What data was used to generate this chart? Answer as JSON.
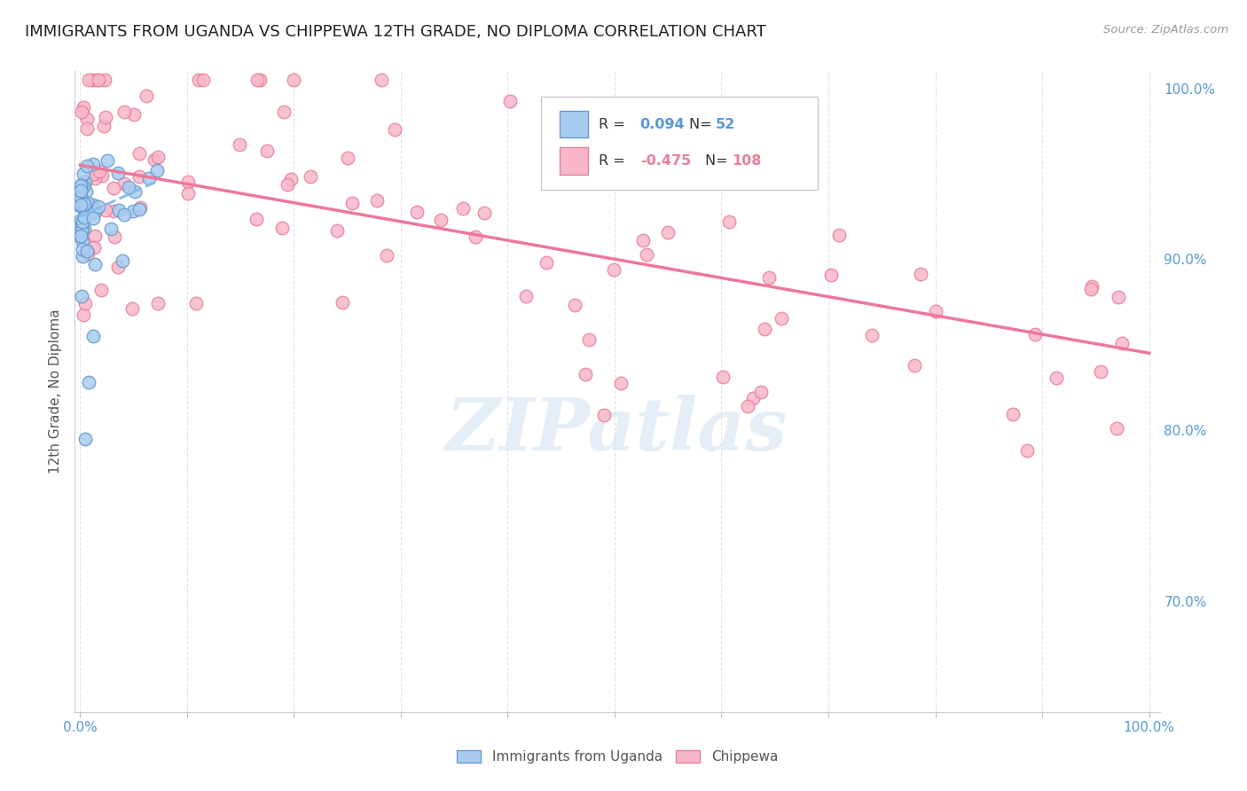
{
  "title": "IMMIGRANTS FROM UGANDA VS CHIPPEWA 12TH GRADE, NO DIPLOMA CORRELATION CHART",
  "source": "Source: ZipAtlas.com",
  "ylabel": "12th Grade, No Diploma",
  "legend_label1": "Immigrants from Uganda",
  "legend_label2": "Chippewa",
  "r1": "0.094",
  "n1": "52",
  "r2": "-0.475",
  "n2": "108",
  "watermark": "ZIPatlas",
  "blue_color": "#A8CCF0",
  "blue_edge_color": "#6699CC",
  "pink_color": "#F8B8C8",
  "pink_edge_color": "#E88099",
  "blue_line_color": "#88BBEE",
  "pink_line_color": "#EE7799",
  "axis_label_color": "#5599DD",
  "ytick_color": "#5599DD",
  "title_color": "#222222",
  "background_color": "#FFFFFF",
  "plot_bg_color": "#FFFFFF",
  "grid_color": "#DDDDDD",
  "watermark_color": "#CCDDEF",
  "legend_bg": "#FFFFFF",
  "legend_edge": "#CCCCCC",
  "xlim": [
    -0.005,
    1.01
  ],
  "ylim": [
    0.635,
    1.01
  ],
  "yticks": [
    0.7,
    0.8,
    0.9,
    1.0
  ],
  "ytick_labels": [
    "70.0%",
    "80.0%",
    "90.0%",
    "100.0%"
  ],
  "xticks": [
    0.0,
    0.1,
    0.2,
    0.3,
    0.4,
    0.5,
    0.6,
    0.7,
    0.8,
    0.9,
    1.0
  ],
  "xtick_labels": [
    "0.0%",
    "",
    "",
    "",
    "",
    "",
    "",
    "",
    "",
    "",
    "100.0%"
  ],
  "uganda_seed": 42,
  "chip_seed": 77,
  "chip_line_x0": 0.0,
  "chip_line_x1": 1.0,
  "chip_line_y0": 0.955,
  "chip_line_y1": 0.845,
  "uganda_line_x0": 0.0,
  "uganda_line_x1": 0.07,
  "uganda_line_y0": 0.925,
  "uganda_line_y1": 0.945
}
